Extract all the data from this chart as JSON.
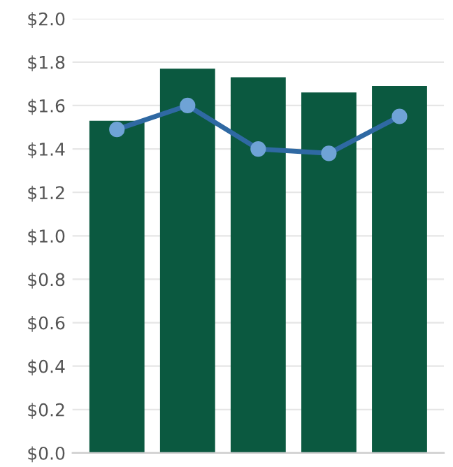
{
  "chart_data": {
    "type": "bar",
    "categories": [
      null,
      null,
      null,
      null,
      null
    ],
    "series": [
      {
        "color": "#0b5940",
        "values": [
          1.53,
          1.77,
          1.73,
          1.66,
          1.69
        ]
      },
      {
        "type": "line",
        "color": "#2f69a3",
        "marker": "circle",
        "values": [
          1.49,
          1.6,
          1.4,
          1.38,
          1.55
        ]
      }
    ],
    "ylim": [
      0,
      2.0
    ],
    "yticks": [
      {
        "value": 0,
        "label": "$0.0"
      },
      {
        "value": 0.2,
        "label": "$0.2"
      },
      {
        "value": 0.4,
        "label": "$0.4"
      },
      {
        "value": 0.6,
        "label": "$0.6"
      },
      {
        "value": 0.8,
        "label": "$0.8"
      },
      {
        "value": 1.0,
        "label": "$1.0"
      },
      {
        "value": 1.2,
        "label": "$1.2"
      },
      {
        "value": 1.4,
        "label": "$1.4"
      },
      {
        "value": 1.6,
        "label": "$1.6"
      },
      {
        "value": 1.8,
        "label": "$1.8"
      },
      {
        "value": 2.0,
        "label": "$2.0"
      }
    ],
    "grid": "y"
  }
}
